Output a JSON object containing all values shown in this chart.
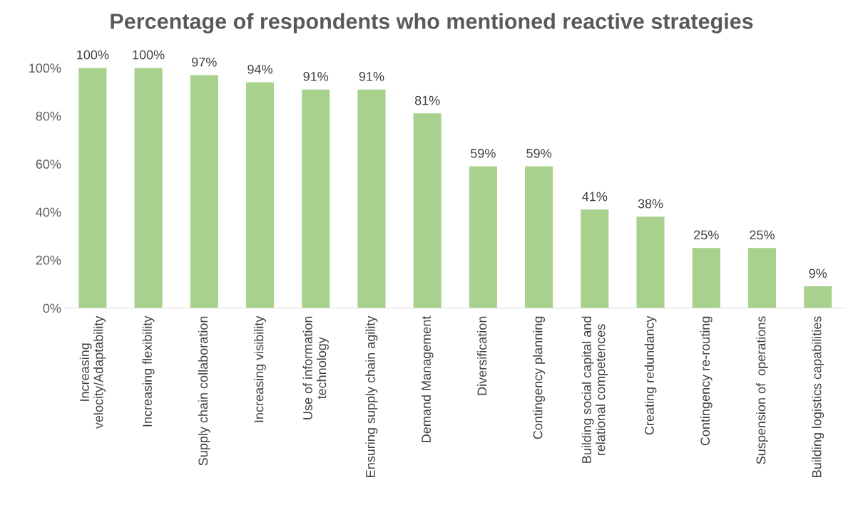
{
  "chart_data": {
    "type": "bar",
    "title": "Percentage of respondents who mentioned reactive strategies",
    "categories": [
      "Increasing\nvelocity/Adaptability",
      "Increasing flexibility",
      "Supply chain collaboration",
      "Increasing visibility",
      "Use of information\ntechnology",
      "Ensuring supply chain agility",
      "Demand Management",
      "Diversification",
      "Contingency planning",
      "Building social capital and\nrelational competences",
      "Creating redundancy",
      "Contingency re-routing",
      "Suspension of  operations",
      "Building logistics capabilities"
    ],
    "values": [
      100,
      100,
      97,
      94,
      91,
      91,
      81,
      59,
      59,
      41,
      38,
      25,
      25,
      9
    ],
    "value_labels": [
      "100%",
      "100%",
      "97%",
      "94%",
      "91%",
      "91%",
      "81%",
      "59%",
      "59%",
      "41%",
      "38%",
      "25%",
      "25%",
      "9%"
    ],
    "color": "#a9d18e",
    "ylim": [
      0,
      100
    ],
    "yticks": [
      {
        "value": 0,
        "label": "0%"
      },
      {
        "value": 20,
        "label": "20%"
      },
      {
        "value": 40,
        "label": "40%"
      },
      {
        "value": 60,
        "label": "60%"
      },
      {
        "value": 80,
        "label": "80%"
      },
      {
        "value": 100,
        "label": "100%"
      }
    ],
    "grid": false,
    "legend": false
  }
}
